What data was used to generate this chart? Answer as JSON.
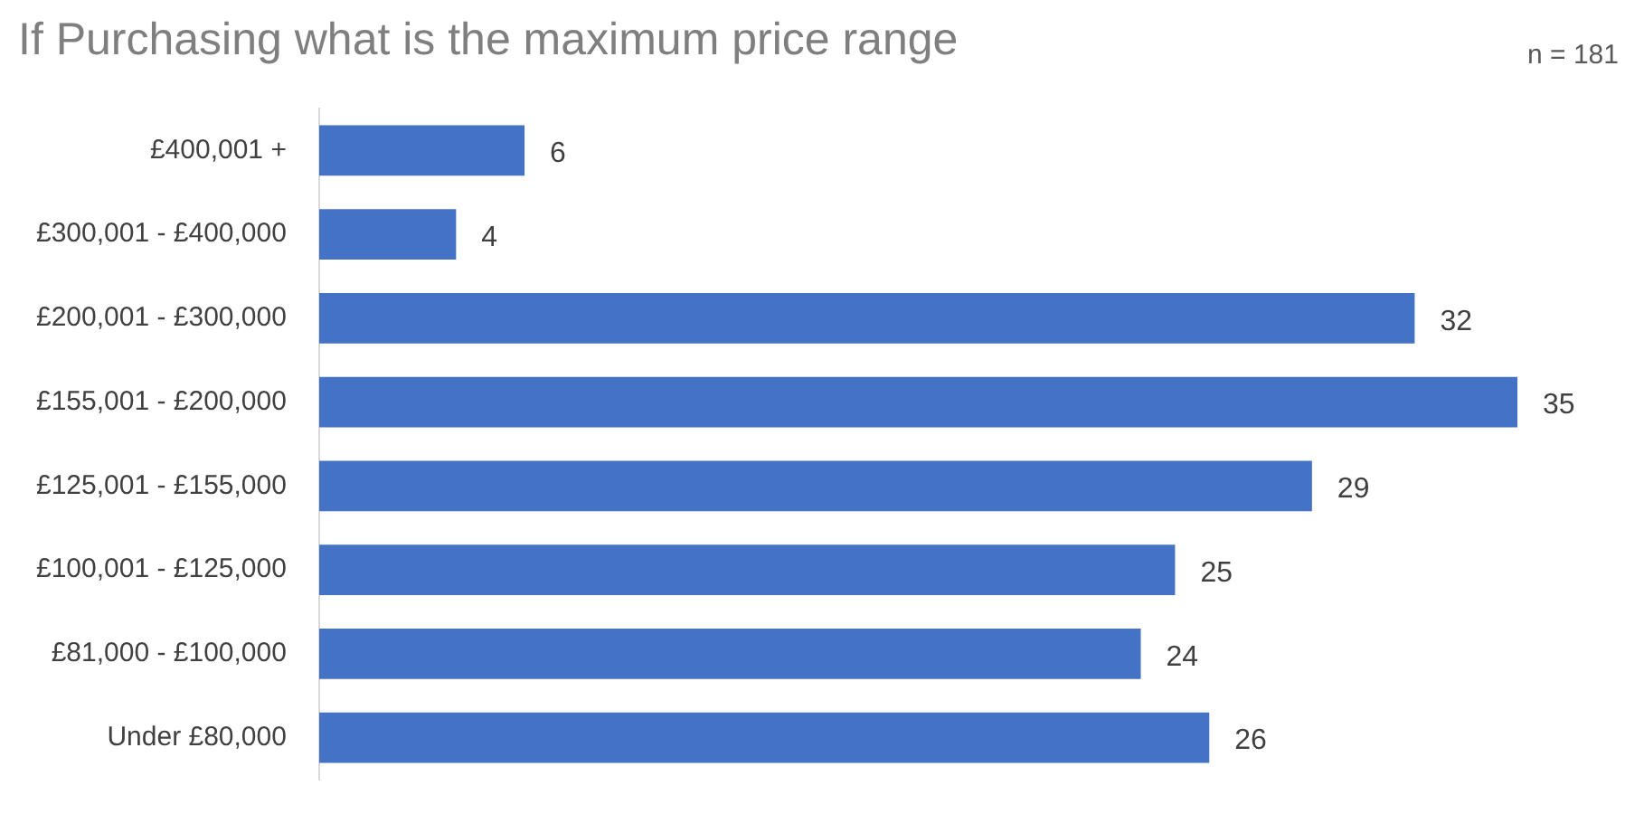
{
  "chart_data": {
    "type": "bar",
    "orientation": "horizontal",
    "title": "If Purchasing what is the maximum price range",
    "annotations": [
      "n = 181"
    ],
    "categories": [
      "£400,001 +",
      "£300,001 - £400,000",
      "£200,001 - £300,000",
      "£155,001 - £200,000",
      "£125,001 - £155,000",
      "£100,001 - £125,000",
      "£81,000 - £100,000",
      "Under £80,000"
    ],
    "values": [
      6,
      4,
      32,
      35,
      29,
      25,
      24,
      26
    ],
    "color": "#4472c4",
    "data_labels": true,
    "legend": false,
    "tick_labels": "y"
  }
}
